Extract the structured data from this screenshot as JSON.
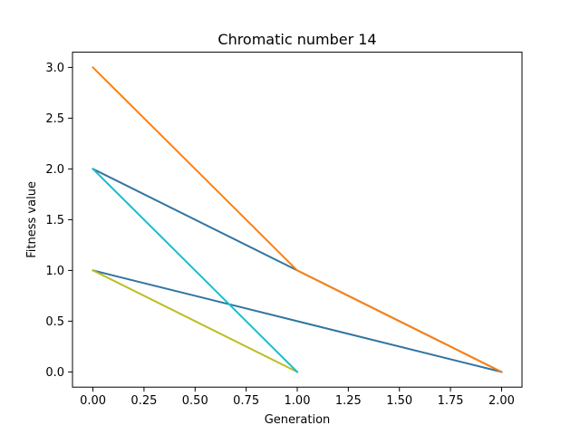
{
  "chart_data": {
    "type": "line",
    "title": "Chromatic number 14",
    "xlabel": "Generation",
    "ylabel": "Fitness value",
    "xlim": [
      -0.1,
      2.1
    ],
    "ylim": [
      -0.15,
      3.15
    ],
    "xticks": [
      0.0,
      0.25,
      0.5,
      0.75,
      1.0,
      1.25,
      1.5,
      1.75,
      2.0
    ],
    "xtick_labels": [
      "0.00",
      "0.25",
      "0.50",
      "0.75",
      "1.00",
      "1.25",
      "1.50",
      "1.75",
      "2.00"
    ],
    "yticks": [
      0.0,
      0.5,
      1.0,
      1.5,
      2.0,
      2.5,
      3.0
    ],
    "ytick_labels": [
      "0.0",
      "0.5",
      "1.0",
      "1.5",
      "2.0",
      "2.5",
      "3.0"
    ],
    "grid": false,
    "legend": "none",
    "series": [
      {
        "color": "#3274a1",
        "x": [
          0,
          1,
          2
        ],
        "y": [
          1,
          0.5,
          0
        ]
      },
      {
        "color": "#bcbd22",
        "x": [
          0,
          1
        ],
        "y": [
          1,
          0
        ]
      },
      {
        "color": "#3274a1",
        "x": [
          0,
          1,
          2
        ],
        "y": [
          2,
          1,
          0
        ]
      },
      {
        "color": "#17becf",
        "x": [
          0,
          1
        ],
        "y": [
          2,
          0
        ]
      },
      {
        "color": "#ff7f0e",
        "x": [
          0,
          1,
          2
        ],
        "y": [
          3,
          1,
          0
        ]
      }
    ]
  }
}
